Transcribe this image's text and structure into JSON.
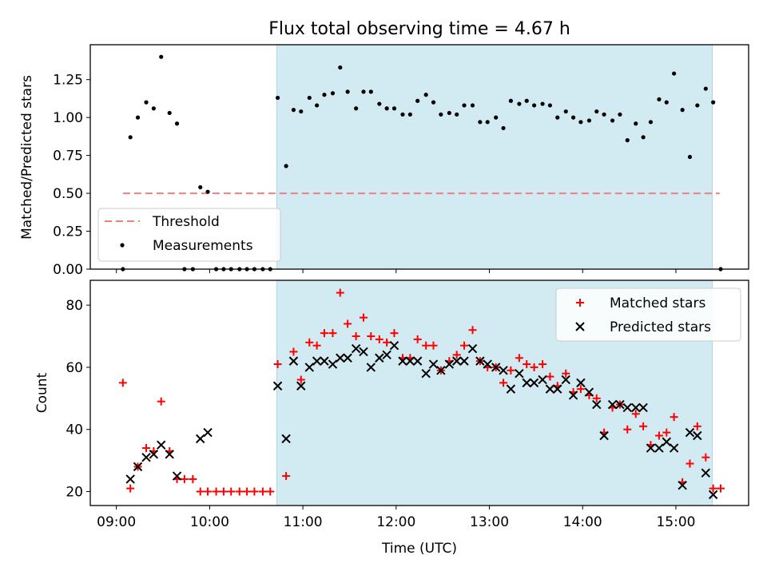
{
  "figure": {
    "title": "Flux total observing time = 4.67 h",
    "x_axis_label": "Time (UTC)",
    "x_tick_labels": [
      "09:00",
      "10:00",
      "11:00",
      "12:00",
      "13:00",
      "14:00",
      "15:00"
    ],
    "shaded_region_hours": [
      10.72,
      15.39
    ],
    "shaded_color": "#add8e6",
    "x_range_hours": [
      8.72,
      15.78
    ]
  },
  "chart_data": [
    {
      "type": "scatter",
      "panel": "top",
      "ylabel": "Matched/Predicted stars",
      "ylim": [
        0,
        1.48
      ],
      "y_ticks": [
        0,
        0.25,
        0.5,
        0.75,
        1.0,
        1.25
      ],
      "y_tick_labels": [
        "0.00",
        "0.25",
        "0.50",
        "0.75",
        "1.00",
        "1.25"
      ],
      "threshold": {
        "name": "Threshold",
        "value": 0.5,
        "x_range": [
          9.07,
          15.47
        ],
        "color": "#f08080"
      },
      "legend": {
        "position": "lower-left",
        "entries": [
          "Threshold",
          "Measurements"
        ]
      },
      "series": [
        {
          "name": "Measurements",
          "color": "#000000",
          "x": [
            9.07,
            9.15,
            9.23,
            9.32,
            9.4,
            9.48,
            9.57,
            9.65,
            9.73,
            9.82,
            9.9,
            9.98,
            10.07,
            10.15,
            10.23,
            10.32,
            10.4,
            10.48,
            10.57,
            10.65,
            10.73,
            10.82,
            10.9,
            10.98,
            11.07,
            11.15,
            11.23,
            11.32,
            11.4,
            11.48,
            11.57,
            11.65,
            11.73,
            11.82,
            11.9,
            11.98,
            12.07,
            12.15,
            12.23,
            12.32,
            12.4,
            12.48,
            12.57,
            12.65,
            12.73,
            12.82,
            12.9,
            12.98,
            13.07,
            13.15,
            13.23,
            13.32,
            13.4,
            13.48,
            13.57,
            13.65,
            13.73,
            13.82,
            13.9,
            13.98,
            14.07,
            14.15,
            14.23,
            14.32,
            14.4,
            14.48,
            14.57,
            14.65,
            14.73,
            14.82,
            14.9,
            14.98,
            15.07,
            15.15,
            15.23,
            15.32,
            15.4,
            15.48
          ],
          "y": [
            0.0,
            0.87,
            1.0,
            1.1,
            1.06,
            1.4,
            1.03,
            0.96,
            0.0,
            0.0,
            0.54,
            0.51,
            0.0,
            0.0,
            0.0,
            0.0,
            0.0,
            0.0,
            0.0,
            0.0,
            1.13,
            0.68,
            1.05,
            1.04,
            1.13,
            1.08,
            1.15,
            1.16,
            1.33,
            1.17,
            1.06,
            1.17,
            1.17,
            1.09,
            1.06,
            1.06,
            1.02,
            1.02,
            1.11,
            1.15,
            1.1,
            1.02,
            1.03,
            1.02,
            1.08,
            1.08,
            0.97,
            0.97,
            1.0,
            0.93,
            1.11,
            1.09,
            1.11,
            1.08,
            1.09,
            1.08,
            1.0,
            1.04,
            1.0,
            0.97,
            0.98,
            1.04,
            1.02,
            0.98,
            1.02,
            0.85,
            0.96,
            0.87,
            0.97,
            1.12,
            1.1,
            1.29,
            1.05,
            0.74,
            1.08,
            1.19,
            1.1,
            0.0
          ]
        }
      ]
    },
    {
      "type": "scatter",
      "panel": "bottom",
      "ylabel": "Count",
      "ylim": [
        15.5,
        88
      ],
      "y_ticks": [
        20,
        40,
        60,
        80
      ],
      "y_tick_labels": [
        "20",
        "40",
        "60",
        "80"
      ],
      "legend": {
        "position": "upper-right",
        "entries": [
          "Matched stars",
          "Predicted stars"
        ]
      },
      "series": [
        {
          "name": "Matched stars",
          "marker": "plus",
          "color": "#ff0000",
          "x": [
            9.07,
            9.15,
            9.23,
            9.32,
            9.4,
            9.48,
            9.57,
            9.65,
            9.73,
            9.82,
            9.9,
            9.98,
            10.07,
            10.15,
            10.23,
            10.32,
            10.4,
            10.48,
            10.57,
            10.65,
            10.73,
            10.82,
            10.9,
            10.98,
            11.07,
            11.15,
            11.23,
            11.32,
            11.4,
            11.48,
            11.57,
            11.65,
            11.73,
            11.82,
            11.9,
            11.98,
            12.07,
            12.15,
            12.23,
            12.32,
            12.4,
            12.48,
            12.57,
            12.65,
            12.73,
            12.82,
            12.9,
            12.98,
            13.07,
            13.15,
            13.23,
            13.32,
            13.4,
            13.48,
            13.57,
            13.65,
            13.73,
            13.82,
            13.9,
            13.98,
            14.07,
            14.15,
            14.23,
            14.32,
            14.4,
            14.48,
            14.57,
            14.65,
            14.73,
            14.82,
            14.9,
            14.98,
            15.07,
            15.15,
            15.23,
            15.32,
            15.4,
            15.48
          ],
          "y": [
            55,
            21,
            28,
            34,
            33,
            49,
            33,
            24,
            24,
            24,
            20,
            20,
            20,
            20,
            20,
            20,
            20,
            20,
            20,
            20,
            61,
            25,
            65,
            56,
            68,
            67,
            71,
            71,
            84,
            74,
            70,
            76,
            70,
            69,
            68,
            71,
            63,
            63,
            69,
            67,
            67,
            59,
            62,
            64,
            67,
            72,
            62,
            60,
            60,
            55,
            59,
            63,
            61,
            60,
            61,
            57,
            54,
            58,
            52,
            53,
            51,
            50,
            39,
            47,
            48,
            40,
            45,
            41,
            35,
            38,
            39,
            44,
            23,
            29,
            41,
            31,
            21,
            21
          ]
        },
        {
          "name": "Predicted stars",
          "marker": "x",
          "color": "#000000",
          "x": [
            9.15,
            9.23,
            9.32,
            9.4,
            9.48,
            9.57,
            9.65,
            9.9,
            9.98,
            10.73,
            10.82,
            10.9,
            10.98,
            11.07,
            11.15,
            11.23,
            11.32,
            11.4,
            11.48,
            11.57,
            11.65,
            11.73,
            11.82,
            11.9,
            11.98,
            12.07,
            12.15,
            12.23,
            12.32,
            12.4,
            12.48,
            12.57,
            12.65,
            12.73,
            12.82,
            12.9,
            12.98,
            13.07,
            13.15,
            13.23,
            13.32,
            13.4,
            13.48,
            13.57,
            13.65,
            13.73,
            13.82,
            13.9,
            13.98,
            14.07,
            14.15,
            14.23,
            14.32,
            14.4,
            14.48,
            14.57,
            14.65,
            14.73,
            14.82,
            14.9,
            14.98,
            15.07,
            15.15,
            15.23,
            15.32,
            15.4
          ],
          "y": [
            24,
            28,
            31,
            32,
            35,
            32,
            25,
            37,
            39,
            54,
            37,
            62,
            54,
            60,
            62,
            62,
            61,
            63,
            63,
            66,
            65,
            60,
            63,
            64,
            67,
            62,
            62,
            62,
            58,
            61,
            59,
            61,
            62,
            62,
            66,
            62,
            61,
            60,
            59,
            53,
            58,
            55,
            55,
            56,
            53,
            53,
            56,
            51,
            55,
            52,
            48,
            38,
            48,
            48,
            47,
            47,
            47,
            34,
            34,
            36,
            34,
            22,
            39,
            38,
            26,
            19
          ]
        }
      ]
    }
  ]
}
